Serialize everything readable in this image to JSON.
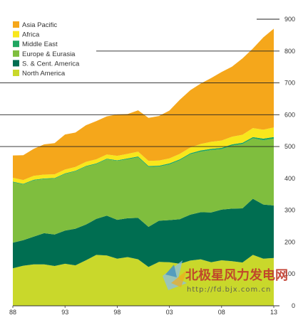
{
  "chart_data": {
    "type": "area",
    "stacked": true,
    "x": [
      1988,
      1989,
      1990,
      1991,
      1992,
      1993,
      1994,
      1995,
      1996,
      1997,
      1998,
      1999,
      2000,
      2001,
      2002,
      2003,
      2004,
      2005,
      2006,
      2007,
      2008,
      2009,
      2010,
      2011,
      2012,
      2013
    ],
    "x_tick_values": [
      1988,
      1993,
      1998,
      2003,
      2008,
      2013
    ],
    "x_tick_labels": [
      "88",
      "93",
      "98",
      "03",
      "08",
      "13"
    ],
    "ylim": [
      0,
      900
    ],
    "y_ticks": [
      0,
      100,
      200,
      300,
      400,
      500,
      600,
      700,
      800,
      900
    ],
    "y_axis_side": "right",
    "gridlines": "partial horizontal lines at 500–900",
    "legend_position": "top-left",
    "series": [
      {
        "name": "North America",
        "color": "#c9d82b",
        "values": [
          118,
          126,
          130,
          130,
          125,
          132,
          127,
          143,
          160,
          158,
          148,
          153,
          146,
          122,
          138,
          137,
          132,
          142,
          146,
          137,
          143,
          140,
          136,
          160,
          148,
          150
        ]
      },
      {
        "name": "S. & Cent. America",
        "color": "#006e51",
        "values": [
          80,
          80,
          87,
          98,
          99,
          104,
          115,
          112,
          113,
          125,
          122,
          122,
          130,
          126,
          129,
          132,
          140,
          144,
          148,
          156,
          159,
          165,
          170,
          176,
          170,
          165
        ]
      },
      {
        "name": "Europe & Eurasia",
        "color": "#7fbe3e",
        "values": [
          190,
          175,
          177,
          170,
          175,
          178,
          180,
          182,
          172,
          177,
          185,
          185,
          190,
          188,
          170,
          175,
          185,
          190,
          190,
          196,
          190,
          198,
          202,
          190,
          202,
          210
        ]
      },
      {
        "name": "Middle East",
        "color": "#1fa660",
        "values": [
          2,
          2,
          2,
          2,
          2,
          2,
          2,
          2,
          2,
          2,
          2,
          3,
          3,
          3,
          3,
          3,
          3,
          3,
          4,
          4,
          4,
          4,
          4,
          4,
          5,
          5
        ]
      },
      {
        "name": "Africa",
        "color": "#f8e71c",
        "values": [
          12,
          12,
          12,
          12,
          12,
          12,
          12,
          13,
          13,
          13,
          14,
          14,
          15,
          16,
          16,
          16,
          17,
          18,
          20,
          22,
          23,
          24,
          25,
          28,
          28,
          30
        ]
      },
      {
        "name": "Asia Pacific",
        "color": "#f5a71b",
        "values": [
          70,
          78,
          85,
          95,
          98,
          110,
          108,
          115,
          120,
          120,
          130,
          125,
          130,
          135,
          140,
          150,
          170,
          180,
          190,
          200,
          215,
          220,
          240,
          250,
          290,
          310
        ]
      }
    ]
  },
  "watermark": {
    "title": "北极星风力发电网",
    "url": "http://fd.bjx.com.cn"
  }
}
